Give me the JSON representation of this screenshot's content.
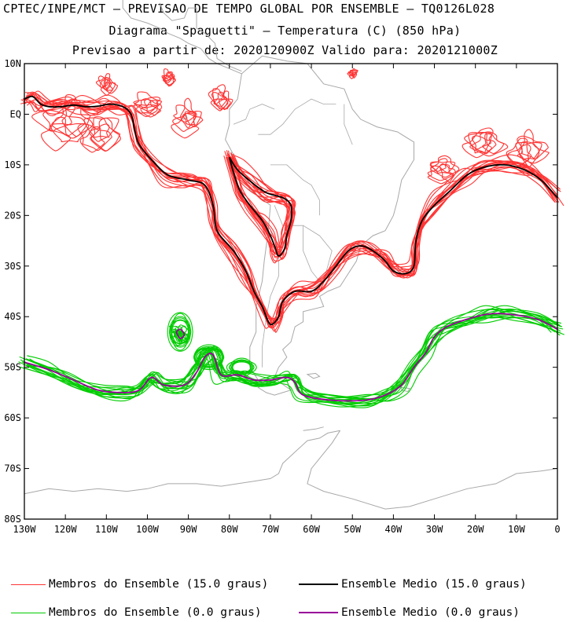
{
  "header": {
    "line1": "CPTEC/INPE/MCT — PREVISAO DE TEMPO GLOBAL POR ENSEMBLE — TQ0126L028",
    "line2": "Diagrama \"Spaguetti\" — Temperatura (C) (850 hPa)",
    "line3": "Previsao a partir de: 2020120900Z  Valido para: 2020121000Z"
  },
  "chart_data": {
    "type": "map-contour-spaghetti",
    "title": "Diagrama \"Spaguetti\" — Temperatura (C) (850 hPa)",
    "xlim": [
      -130,
      0
    ],
    "ylim": [
      -80,
      10
    ],
    "x_ticks": [
      {
        "lon": -130,
        "label": "130W"
      },
      {
        "lon": -120,
        "label": "120W"
      },
      {
        "lon": -110,
        "label": "110W"
      },
      {
        "lon": -100,
        "label": "100W"
      },
      {
        "lon": -90,
        "label": "90W"
      },
      {
        "lon": -80,
        "label": "80W"
      },
      {
        "lon": -70,
        "label": "70W"
      },
      {
        "lon": -60,
        "label": "60W"
      },
      {
        "lon": -50,
        "label": "50W"
      },
      {
        "lon": -40,
        "label": "40W"
      },
      {
        "lon": -30,
        "label": "30W"
      },
      {
        "lon": -20,
        "label": "20W"
      },
      {
        "lon": -10,
        "label": "10W"
      },
      {
        "lon": 0,
        "label": "0"
      }
    ],
    "y_ticks": [
      {
        "lat": 10,
        "label": "10N"
      },
      {
        "lat": 0,
        "label": "EQ"
      },
      {
        "lat": -10,
        "label": "10S"
      },
      {
        "lat": -20,
        "label": "20S"
      },
      {
        "lat": -30,
        "label": "30S"
      },
      {
        "lat": -40,
        "label": "40S"
      },
      {
        "lat": -50,
        "label": "50S"
      },
      {
        "lat": -60,
        "label": "60S"
      },
      {
        "lat": -70,
        "label": "70S"
      },
      {
        "lat": -80,
        "label": "80S"
      }
    ],
    "series": [
      {
        "name": "Ensemble Medio (15.0 graus)",
        "color": "#000000",
        "role": "mean",
        "points": [
          [
            -130,
            3
          ],
          [
            -128,
            3.5
          ],
          [
            -126,
            2
          ],
          [
            -124,
            1.5
          ],
          [
            -121,
            1.5
          ],
          [
            -118,
            1.8
          ],
          [
            -115,
            1.5
          ],
          [
            -112,
            1.6
          ],
          [
            -109,
            2
          ],
          [
            -106,
            1.5
          ],
          [
            -104,
            0
          ],
          [
            -103,
            -3.5
          ],
          [
            -102,
            -6
          ],
          [
            -99,
            -9
          ],
          [
            -95,
            -12
          ],
          [
            -90,
            -13
          ],
          [
            -86,
            -14
          ],
          [
            -84,
            -18
          ],
          [
            -83,
            -23
          ],
          [
            -79,
            -27
          ],
          [
            -76,
            -31
          ],
          [
            -74,
            -35
          ],
          [
            -72,
            -38
          ],
          [
            -70.5,
            -41
          ],
          [
            -69.5,
            -41.5
          ],
          [
            -68,
            -40
          ],
          [
            -67,
            -37
          ],
          [
            -64,
            -35
          ],
          [
            -60,
            -35
          ],
          [
            -57,
            -33
          ],
          [
            -54,
            -30
          ],
          [
            -51,
            -27
          ],
          [
            -48,
            -26
          ],
          [
            -45,
            -27
          ],
          [
            -42,
            -29
          ],
          [
            -40,
            -31
          ],
          [
            -37,
            -31.5
          ],
          [
            -35,
            -30
          ],
          [
            -34.5,
            -25
          ],
          [
            -33,
            -21
          ],
          [
            -30,
            -18
          ],
          [
            -26,
            -15
          ],
          [
            -22,
            -12
          ],
          [
            -18,
            -10.5
          ],
          [
            -13,
            -10
          ],
          [
            -8,
            -11
          ],
          [
            -4,
            -13
          ],
          [
            0,
            -16.5
          ]
        ]
      },
      {
        "name": "Ensemble Medio (15.0 graus)",
        "color": "#000000",
        "role": "mean",
        "points": [
          [
            -80,
            -8.5
          ],
          [
            -78,
            -11
          ],
          [
            -74.5,
            -13.5
          ],
          [
            -71,
            -15.5
          ],
          [
            -67,
            -16.5
          ],
          [
            -65,
            -18
          ],
          [
            -65,
            -21
          ],
          [
            -66,
            -24
          ],
          [
            -66.5,
            -26.5
          ],
          [
            -68,
            -28
          ],
          [
            -69,
            -26
          ],
          [
            -70,
            -24
          ],
          [
            -72,
            -21
          ],
          [
            -75,
            -18
          ],
          [
            -77.5,
            -15
          ],
          [
            -79,
            -11.5
          ],
          [
            -80,
            -8.5
          ]
        ]
      },
      {
        "name": "Ensemble Medio (0.0 graus)",
        "color": "#990099",
        "role": "mean",
        "points": [
          [
            -130,
            -49
          ],
          [
            -124,
            -50.5
          ],
          [
            -118,
            -52.5
          ],
          [
            -112,
            -54.5
          ],
          [
            -106,
            -55
          ],
          [
            -102,
            -54.5
          ],
          [
            -99,
            -52
          ],
          [
            -96,
            -53.5
          ],
          [
            -91,
            -53.5
          ],
          [
            -88,
            -51
          ],
          [
            -86,
            -48
          ],
          [
            -84,
            -47.5
          ],
          [
            -82,
            -51.5
          ],
          [
            -78,
            -51.5
          ],
          [
            -74,
            -52.5
          ],
          [
            -70,
            -52.5
          ],
          [
            -66,
            -52
          ],
          [
            -64,
            -53
          ],
          [
            -62,
            -55.5
          ],
          [
            -55,
            -56.5
          ],
          [
            -47,
            -56.5
          ],
          [
            -42,
            -55.5
          ],
          [
            -38,
            -53.5
          ],
          [
            -35,
            -50
          ],
          [
            -32,
            -47
          ],
          [
            -30,
            -44
          ],
          [
            -27,
            -42
          ],
          [
            -22,
            -40.5
          ],
          [
            -17,
            -39.5
          ],
          [
            -12,
            -39.5
          ],
          [
            -5,
            -40.5
          ],
          [
            0,
            -42.5
          ]
        ]
      },
      {
        "name": "Ensemble Medio (0.0 graus)",
        "color": "#990099",
        "role": "mean",
        "points": [
          [
            -93,
            -43
          ],
          [
            -92,
            -42.5
          ],
          [
            -91,
            -43.5
          ],
          [
            -92,
            -44.3
          ],
          [
            -93,
            -43
          ]
        ]
      }
    ],
    "members": {
      "warm": {
        "name": "Membros do Ensemble (15.0 graus)",
        "color": "#ff3333",
        "count": 15
      },
      "cold": {
        "name": "Membros do Ensemble (0.0 graus)",
        "color": "#00cc00",
        "count": 15
      }
    }
  },
  "legend": {
    "items": [
      {
        "label": "Membros do Ensemble (15.0 graus)",
        "color": "#ff3333"
      },
      {
        "label": "Ensemble Medio (15.0 graus)",
        "color": "#000000"
      },
      {
        "label": "Membros do Ensemble (0.0 graus)",
        "color": "#00cc00"
      },
      {
        "label": "Ensemble Medio (0.0 graus)",
        "color": "#990099"
      }
    ]
  }
}
